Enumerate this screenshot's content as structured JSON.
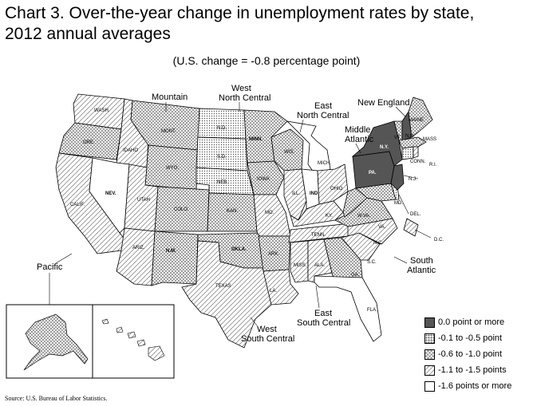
{
  "title_line1": "Chart 3. Over-the-year change in unemployment rates by state,",
  "title_line2": "2012 annual averages",
  "subtitle": "(U.S. change = -0.8 percentage point)",
  "regions": {
    "mountain": "Mountain",
    "west_north_central_1": "West",
    "west_north_central_2": "North Central",
    "east_north_central_1": "East",
    "east_north_central_2": "North Central",
    "new_england": "New England",
    "middle_atlantic_1": "Middle",
    "middle_atlantic_2": "Atlantic",
    "pacific": "Pacific",
    "south_atlantic_1": "South",
    "south_atlantic_2": "Atlantic",
    "east_south_central_1": "East",
    "east_south_central_2": "South Central",
    "west_south_central_1": "West",
    "west_south_central_2": "South Central"
  },
  "states": {
    "WASH.": "-1.1 to -1.5 points",
    "ORE.": "-0.6 to -1.0 point",
    "CALIF.": "-1.1 to -1.5 points",
    "IDAHO": "-1.1 to -1.5 points",
    "NEV.": "-1.6 points or more",
    "MONT.": "-0.6 to -1.0 point",
    "WYO.": "-0.6 to -1.0 point",
    "UTAH": "-1.1 to -1.5 points",
    "COLO.": "-0.6 to -1.0 point",
    "ARIZ.": "-1.1 to -1.5 points",
    "N.M.": "-0.6 to -1.0 point",
    "N.D.": "-0.1 to -0.5 point",
    "S.D.": "-0.1 to -0.5 point",
    "NEB.": "-0.1 to -0.5 point",
    "KAN.": "-0.6 to -1.0 point",
    "MINN.": "-0.6 to -1.0 point",
    "IOWA": "-0.6 to -1.0 point",
    "MO.": "-1.1 to -1.5 points",
    "OKLA.": "-0.6 to -1.0 point",
    "TEXAS": "-1.1 to -1.5 points",
    "ARK.": "-0.6 to -1.0 point",
    "LA.": "-1.1 to -1.5 points",
    "WIS.": "-0.6 to -1.0 point",
    "ILL.": "-1.1 to -1.5 points",
    "MICH.": "-1.6 points or more",
    "IND.": "-1.6 points or more",
    "OHIO": "-1.1 to -1.5 points",
    "KY.": "-1.1 to -1.5 points",
    "TENN.": "-1.1 to -1.5 points",
    "MISS.": "-1.1 to -1.5 points",
    "ALA.": "-1.1 to -1.5 points",
    "GA.": "-0.6 to -1.0 point",
    "FLA.": "-1.6 points or more",
    "S.C.": "-1.1 to -1.5 points",
    "N.C.": "-1.1 to -1.5 points",
    "VA.": "-0.6 to -1.0 point",
    "W.VA.": "-0.6 to -1.0 point",
    "MD.": "-0.6 to -1.0 point",
    "DEL.": "-0.1 to -0.5 point",
    "D.C.": "-1.1 to -1.5 points",
    "PA.": "0.0 point or more",
    "N.Y.": "0.0 point or more",
    "N.J.": "0.0 point or more",
    "CONN.": "-0.1 to -0.5 point",
    "R.I.": "-1.1 to -1.5 points",
    "MASS": "-0.6 to -1.0 point",
    "VT.": "-0.6 to -1.0 point",
    "N.H.": "0.0 point or more",
    "MAINE": "-0.6 to -1.0 point",
    "ALASKA": "-0.6 to -1.0 point",
    "HAWAII": "-1.1 to -1.5 points"
  },
  "legend": [
    {
      "label": "0.0 point or more",
      "fill": "solid-dark"
    },
    {
      "label": "-0.1 to -0.5 point",
      "fill": "dots"
    },
    {
      "label": "-0.6 to -1.0 point",
      "fill": "crosshatch"
    },
    {
      "label": "-1.1 to -1.5 points",
      "fill": "diagonal"
    },
    {
      "label": "-1.6 points or more",
      "fill": "white"
    }
  ],
  "colors": {
    "solid_dark": "#555555",
    "pattern_ink": "#666666",
    "outline": "#000000"
  },
  "source": "Source: U.S. Bureau of Labor Statistics."
}
